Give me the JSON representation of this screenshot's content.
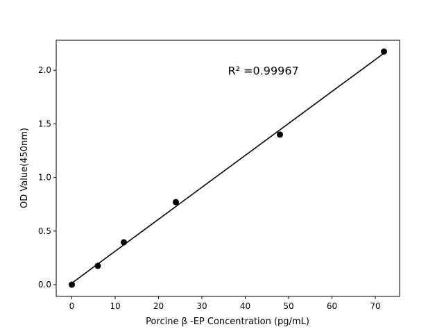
{
  "chart_data": {
    "type": "scatter",
    "title": "",
    "xlabel": "Porcine β -EP Concentration (pg/mL)",
    "ylabel": "OD Value(450nm)",
    "xlim": [
      -3.6,
      75.6
    ],
    "ylim": [
      -0.11,
      2.28
    ],
    "xticks": [
      0,
      10,
      20,
      30,
      40,
      50,
      60,
      70
    ],
    "yticks": [
      0.0,
      0.5,
      1.0,
      1.5,
      2.0
    ],
    "xtick_labels": [
      "0",
      "10",
      "20",
      "30",
      "40",
      "50",
      "60",
      "70"
    ],
    "ytick_labels": [
      "0.0",
      "0.5",
      "1.0",
      "1.5",
      "2.0"
    ],
    "points": {
      "x": [
        0,
        6,
        12,
        24,
        48,
        72
      ],
      "y": [
        0.0,
        0.175,
        0.395,
        0.77,
        1.4,
        2.175
      ],
      "color": "#000000"
    },
    "fit_line": {
      "type": "linear",
      "slope": 0.0298,
      "intercept": 0.014,
      "x_range": [
        0,
        72
      ],
      "color": "#000000"
    },
    "annotation": {
      "text": "R² =0.99967",
      "x": 36,
      "y": 1.96
    },
    "grid": false,
    "legend": "none"
  }
}
